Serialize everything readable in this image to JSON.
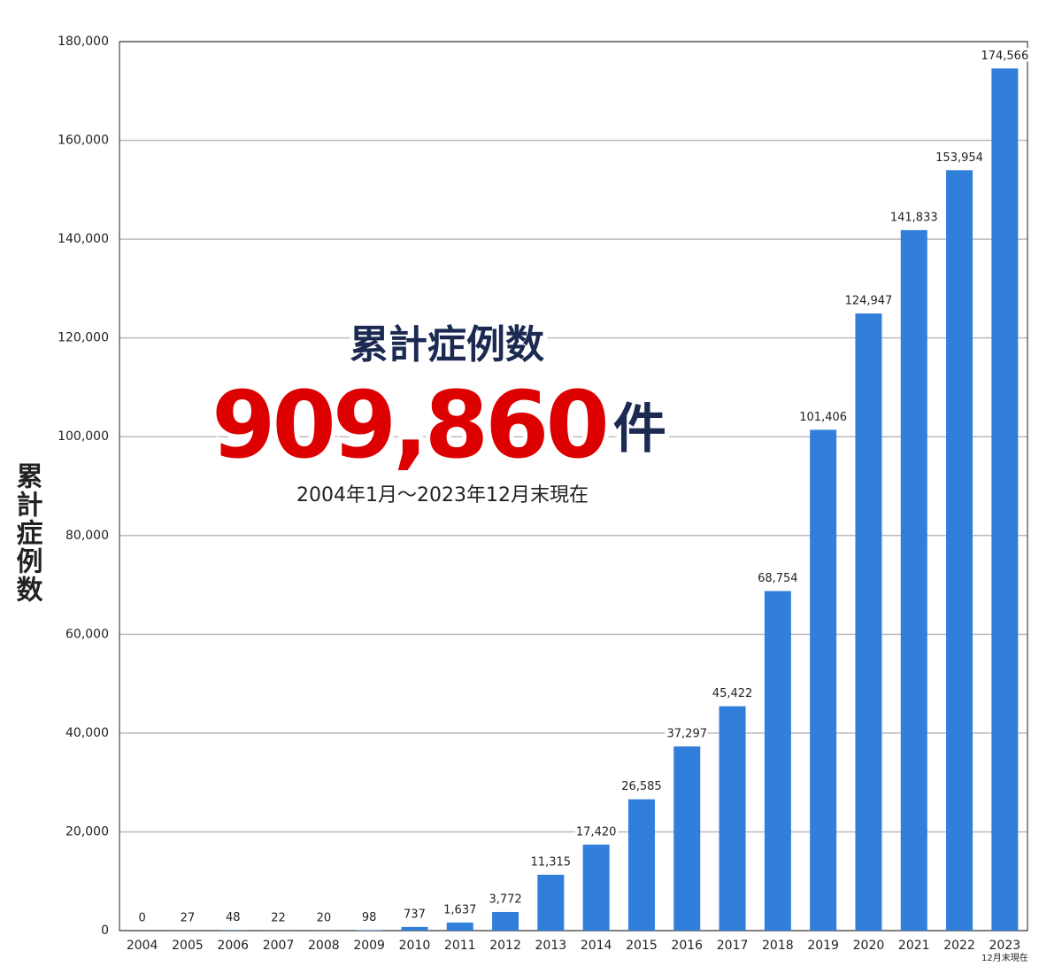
{
  "chart_data": {
    "type": "bar",
    "y_label": "累計症例数",
    "annotation_title": "累計症例数",
    "annotation_total": "909,860",
    "annotation_unit": "件",
    "annotation_period": "2004年1月～2023年12月末現在",
    "categories": [
      "2004",
      "2005",
      "2006",
      "2007",
      "2008",
      "2009",
      "2010",
      "2011",
      "2012",
      "2013",
      "2014",
      "2015",
      "2016",
      "2017",
      "2018",
      "2019",
      "2020",
      "2021",
      "2022",
      "2023"
    ],
    "category_note": "12月末現在",
    "values": [
      0,
      27,
      48,
      22,
      20,
      98,
      737,
      1637,
      3772,
      11315,
      17420,
      26585,
      37297,
      45422,
      68754,
      101406,
      124947,
      141833,
      153954,
      174566
    ],
    "value_labels": [
      "0",
      "27",
      "48",
      "22",
      "20",
      "98",
      "737",
      "1,637",
      "3,772",
      "11,315",
      "17,420",
      "26,585",
      "37,297",
      "45,422",
      "68,754",
      "101,406",
      "124,947",
      "141,833",
      "153,954",
      "174,566"
    ],
    "color": "#317edb",
    "ylim": [
      0,
      180000
    ],
    "yticks": [
      0,
      {
        "value": 20000,
        "label": "20,000"
      },
      {
        "value": 40000,
        "label": "40,000"
      },
      {
        "value": 60000,
        "label": "60,000"
      },
      {
        "value": 80000,
        "label": "80,000"
      },
      {
        "value": 100000,
        "label": "100,000"
      },
      {
        "value": 120000,
        "label": "120,000"
      },
      {
        "value": 140000,
        "label": "140,000"
      },
      {
        "value": 160000,
        "label": "160,000"
      },
      {
        "value": 180000,
        "label": "180,000"
      }
    ],
    "grid": true
  }
}
